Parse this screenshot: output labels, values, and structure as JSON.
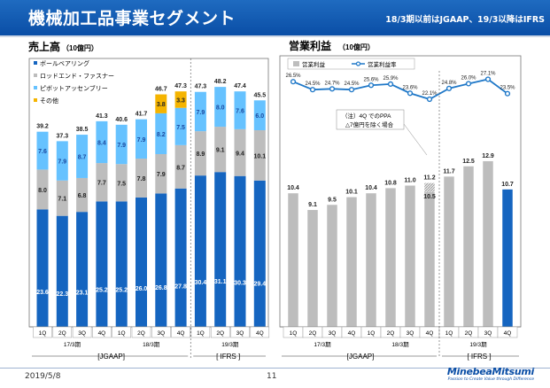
{
  "header": {
    "title": "機械加工品事業セグメント",
    "note": "18/3期以前はJGAAP、19/3以降はIFRS"
  },
  "footer": {
    "date": "2019/5/8",
    "page": "11",
    "logo_name": "MinebeaMitsumi",
    "logo_tag": "Passion to Create Value through Difference"
  },
  "colors": {
    "ball": "#1565c0",
    "rod": "#bdbdbd",
    "pivot": "#66c2ff",
    "other": "#f5b400",
    "profit": "#bdbdbd",
    "profit_last": "#1565c0",
    "line": "#1f78c8"
  },
  "chart_data": [
    {
      "type": "bar",
      "stacked": true,
      "title": "売上高",
      "unit": "（10億円）",
      "categories": [
        "1Q",
        "2Q",
        "3Q",
        "4Q",
        "1Q",
        "2Q",
        "3Q",
        "4Q",
        "1Q",
        "2Q",
        "3Q",
        "4Q"
      ],
      "period_labels": [
        "17/3期",
        "18/3期",
        "19/3期"
      ],
      "standard_labels": [
        "[JGAAP]",
        "[ IFRS ]"
      ],
      "series": [
        {
          "name": "ボールベアリング",
          "key": "ball",
          "values": [
            23.6,
            22.3,
            23.1,
            25.2,
            25.2,
            26.0,
            26.8,
            27.8,
            30.4,
            31.1,
            30.3,
            29.4
          ]
        },
        {
          "name": "ロッドエンド・ファスナー",
          "key": "rod",
          "values": [
            8.0,
            7.1,
            6.8,
            7.7,
            7.5,
            7.8,
            7.9,
            8.7,
            8.9,
            9.1,
            9.4,
            10.1
          ]
        },
        {
          "name": "ピボットアッセンブリー",
          "key": "pivot",
          "values": [
            7.6,
            7.9,
            8.7,
            8.4,
            7.9,
            7.9,
            8.2,
            7.5,
            7.9,
            8.0,
            7.6,
            6.0
          ]
        },
        {
          "name": "その他",
          "key": "other",
          "values": [
            0,
            0,
            0,
            0,
            0,
            0,
            3.8,
            3.3,
            0,
            0,
            0,
            0
          ]
        }
      ],
      "totals": [
        39.2,
        37.3,
        38.5,
        41.3,
        40.6,
        41.7,
        46.7,
        47.3,
        47.3,
        48.2,
        47.4,
        45.5
      ],
      "ylim": [
        0,
        52
      ]
    },
    {
      "type": "bar+line",
      "title": "営業利益",
      "unit": "（10億円）",
      "categories": [
        "1Q",
        "2Q",
        "3Q",
        "4Q",
        "1Q",
        "2Q",
        "3Q",
        "4Q",
        "1Q",
        "2Q",
        "3Q",
        "4Q"
      ],
      "period_labels": [
        "17/3期",
        "18/3期",
        "19/3期"
      ],
      "standard_labels": [
        "[JGAAP]",
        "[ IFRS ]"
      ],
      "legend": [
        "営業利益",
        "営業利益率"
      ],
      "profit": [
        10.4,
        9.1,
        9.5,
        10.1,
        10.4,
        10.8,
        11.0,
        11.2,
        11.7,
        12.5,
        12.9,
        10.7
      ],
      "profit_hatched_8": 10.5,
      "margin_pct": [
        26.5,
        24.5,
        24.7,
        24.5,
        25.6,
        25.9,
        23.6,
        22.1,
        24.8,
        26.0,
        27.1,
        23.5
      ],
      "margin_labels": [
        "26.5%",
        "24.5%",
        "24.7%",
        "24.5%",
        "25.6%",
        "25.9%",
        "23.6%",
        "22.1%",
        "24.8%",
        "26.0%",
        "27.1%",
        "23.5%"
      ],
      "annotation": [
        "（注）4Q でのPPA",
        "△7億円を除く場合"
      ],
      "ylim": [
        0,
        22
      ]
    }
  ]
}
